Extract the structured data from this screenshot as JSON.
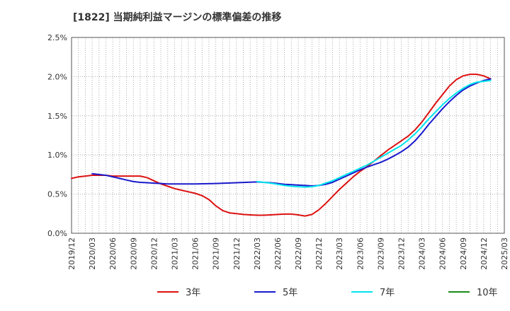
{
  "chart_data": {
    "type": "line",
    "title": "[1822]  当期純利益マージンの標準偏差の推移",
    "xlabel": "",
    "ylabel": "",
    "x_ticks": [
      "2019/12",
      "2020/03",
      "2020/06",
      "2020/09",
      "2020/12",
      "2021/03",
      "2021/06",
      "2021/09",
      "2021/12",
      "2022/03",
      "2022/06",
      "2022/09",
      "2022/12",
      "2023/03",
      "2023/06",
      "2023/09",
      "2023/12",
      "2024/03",
      "2024/06",
      "2024/09",
      "2024/12",
      "2025/03"
    ],
    "y_ticks": [
      "0.0%",
      "0.5%",
      "1.0%",
      "1.5%",
      "2.0%",
      "2.5%"
    ],
    "ylim": [
      0,
      2.5
    ],
    "y_unit": "%",
    "grid": true,
    "legend_position": "bottom",
    "series": [
      {
        "name": "3年",
        "color": "#dd1111",
        "points": [
          [
            "2019/12",
            0.7
          ],
          [
            "2020/01",
            0.72
          ],
          [
            "2020/02",
            0.73
          ],
          [
            "2020/03",
            0.74
          ],
          [
            "2020/04",
            0.74
          ],
          [
            "2020/05",
            0.74
          ],
          [
            "2020/06",
            0.73
          ],
          [
            "2020/07",
            0.73
          ],
          [
            "2020/08",
            0.73
          ],
          [
            "2020/09",
            0.73
          ],
          [
            "2020/10",
            0.73
          ],
          [
            "2020/11",
            0.71
          ],
          [
            "2020/12",
            0.67
          ],
          [
            "2021/01",
            0.63
          ],
          [
            "2021/02",
            0.6
          ],
          [
            "2021/03",
            0.57
          ],
          [
            "2021/04",
            0.55
          ],
          [
            "2021/05",
            0.53
          ],
          [
            "2021/06",
            0.51
          ],
          [
            "2021/07",
            0.48
          ],
          [
            "2021/08",
            0.43
          ],
          [
            "2021/09",
            0.35
          ],
          [
            "2021/10",
            0.29
          ],
          [
            "2021/11",
            0.26
          ],
          [
            "2021/12",
            0.25
          ],
          [
            "2022/01",
            0.24
          ],
          [
            "2022/02",
            0.235
          ],
          [
            "2022/03",
            0.23
          ],
          [
            "2022/04",
            0.23
          ],
          [
            "2022/05",
            0.235
          ],
          [
            "2022/06",
            0.24
          ],
          [
            "2022/07",
            0.245
          ],
          [
            "2022/08",
            0.245
          ],
          [
            "2022/09",
            0.235
          ],
          [
            "2022/10",
            0.22
          ],
          [
            "2022/11",
            0.24
          ],
          [
            "2022/12",
            0.3
          ],
          [
            "2023/01",
            0.38
          ],
          [
            "2023/02",
            0.47
          ],
          [
            "2023/03",
            0.56
          ],
          [
            "2023/04",
            0.64
          ],
          [
            "2023/05",
            0.72
          ],
          [
            "2023/06",
            0.79
          ],
          [
            "2023/07",
            0.85
          ],
          [
            "2023/08",
            0.92
          ],
          [
            "2023/09",
            0.99
          ],
          [
            "2023/10",
            1.06
          ],
          [
            "2023/11",
            1.12
          ],
          [
            "2023/12",
            1.18
          ],
          [
            "2024/01",
            1.24
          ],
          [
            "2024/02",
            1.32
          ],
          [
            "2024/03",
            1.42
          ],
          [
            "2024/04",
            1.54
          ],
          [
            "2024/05",
            1.66
          ],
          [
            "2024/06",
            1.77
          ],
          [
            "2024/07",
            1.88
          ],
          [
            "2024/08",
            1.96
          ],
          [
            "2024/09",
            2.01
          ],
          [
            "2024/10",
            2.03
          ],
          [
            "2024/11",
            2.03
          ],
          [
            "2024/12",
            2.01
          ],
          [
            "2025/01",
            1.97
          ]
        ]
      },
      {
        "name": "5年",
        "color": "#1a1acc",
        "points": [
          [
            "2020/03",
            0.76
          ],
          [
            "2020/04",
            0.75
          ],
          [
            "2020/05",
            0.74
          ],
          [
            "2020/06",
            0.72
          ],
          [
            "2020/07",
            0.7
          ],
          [
            "2020/08",
            0.68
          ],
          [
            "2020/09",
            0.66
          ],
          [
            "2020/10",
            0.65
          ],
          [
            "2020/11",
            0.645
          ],
          [
            "2020/12",
            0.64
          ],
          [
            "2021/01",
            0.635
          ],
          [
            "2021/02",
            0.63
          ],
          [
            "2021/03",
            0.63
          ],
          [
            "2021/06",
            0.63
          ],
          [
            "2021/09",
            0.635
          ],
          [
            "2021/12",
            0.645
          ],
          [
            "2022/03",
            0.655
          ],
          [
            "2022/04",
            0.65
          ],
          [
            "2022/05",
            0.645
          ],
          [
            "2022/06",
            0.635
          ],
          [
            "2022/07",
            0.625
          ],
          [
            "2022/08",
            0.62
          ],
          [
            "2022/09",
            0.615
          ],
          [
            "2022/10",
            0.61
          ],
          [
            "2022/11",
            0.605
          ],
          [
            "2022/12",
            0.61
          ],
          [
            "2023/01",
            0.625
          ],
          [
            "2023/02",
            0.65
          ],
          [
            "2023/03",
            0.69
          ],
          [
            "2023/04",
            0.73
          ],
          [
            "2023/05",
            0.77
          ],
          [
            "2023/06",
            0.81
          ],
          [
            "2023/07",
            0.845
          ],
          [
            "2023/08",
            0.875
          ],
          [
            "2023/09",
            0.905
          ],
          [
            "2023/10",
            0.945
          ],
          [
            "2023/11",
            0.99
          ],
          [
            "2023/12",
            1.04
          ],
          [
            "2024/01",
            1.1
          ],
          [
            "2024/02",
            1.18
          ],
          [
            "2024/03",
            1.28
          ],
          [
            "2024/04",
            1.39
          ],
          [
            "2024/05",
            1.49
          ],
          [
            "2024/06",
            1.59
          ],
          [
            "2024/07",
            1.68
          ],
          [
            "2024/08",
            1.76
          ],
          [
            "2024/09",
            1.83
          ],
          [
            "2024/10",
            1.88
          ],
          [
            "2024/11",
            1.92
          ],
          [
            "2024/12",
            1.95
          ],
          [
            "2025/01",
            1.97
          ]
        ]
      },
      {
        "name": "7年",
        "color": "#00e5ee",
        "points": [
          [
            "2022/03",
            0.66
          ],
          [
            "2022/04",
            0.65
          ],
          [
            "2022/05",
            0.64
          ],
          [
            "2022/06",
            0.625
          ],
          [
            "2022/07",
            0.61
          ],
          [
            "2022/08",
            0.6
          ],
          [
            "2022/09",
            0.595
          ],
          [
            "2022/10",
            0.59
          ],
          [
            "2022/11",
            0.595
          ],
          [
            "2022/12",
            0.61
          ],
          [
            "2023/01",
            0.64
          ],
          [
            "2023/02",
            0.67
          ],
          [
            "2023/03",
            0.71
          ],
          [
            "2023/04",
            0.75
          ],
          [
            "2023/05",
            0.79
          ],
          [
            "2023/06",
            0.83
          ],
          [
            "2023/07",
            0.87
          ],
          [
            "2023/08",
            0.92
          ],
          [
            "2023/09",
            0.97
          ],
          [
            "2023/10",
            1.02
          ],
          [
            "2023/11",
            1.07
          ],
          [
            "2023/12",
            1.12
          ],
          [
            "2024/01",
            1.19
          ],
          [
            "2024/02",
            1.27
          ],
          [
            "2024/03",
            1.36
          ],
          [
            "2024/04",
            1.46
          ],
          [
            "2024/05",
            1.55
          ],
          [
            "2024/06",
            1.64
          ],
          [
            "2024/07",
            1.72
          ],
          [
            "2024/08",
            1.79
          ],
          [
            "2024/09",
            1.85
          ],
          [
            "2024/10",
            1.9
          ],
          [
            "2024/11",
            1.93
          ],
          [
            "2024/12",
            1.94
          ],
          [
            "2025/01",
            1.95
          ]
        ]
      },
      {
        "name": "10年",
        "color": "#1a8c1a",
        "points": []
      }
    ]
  }
}
